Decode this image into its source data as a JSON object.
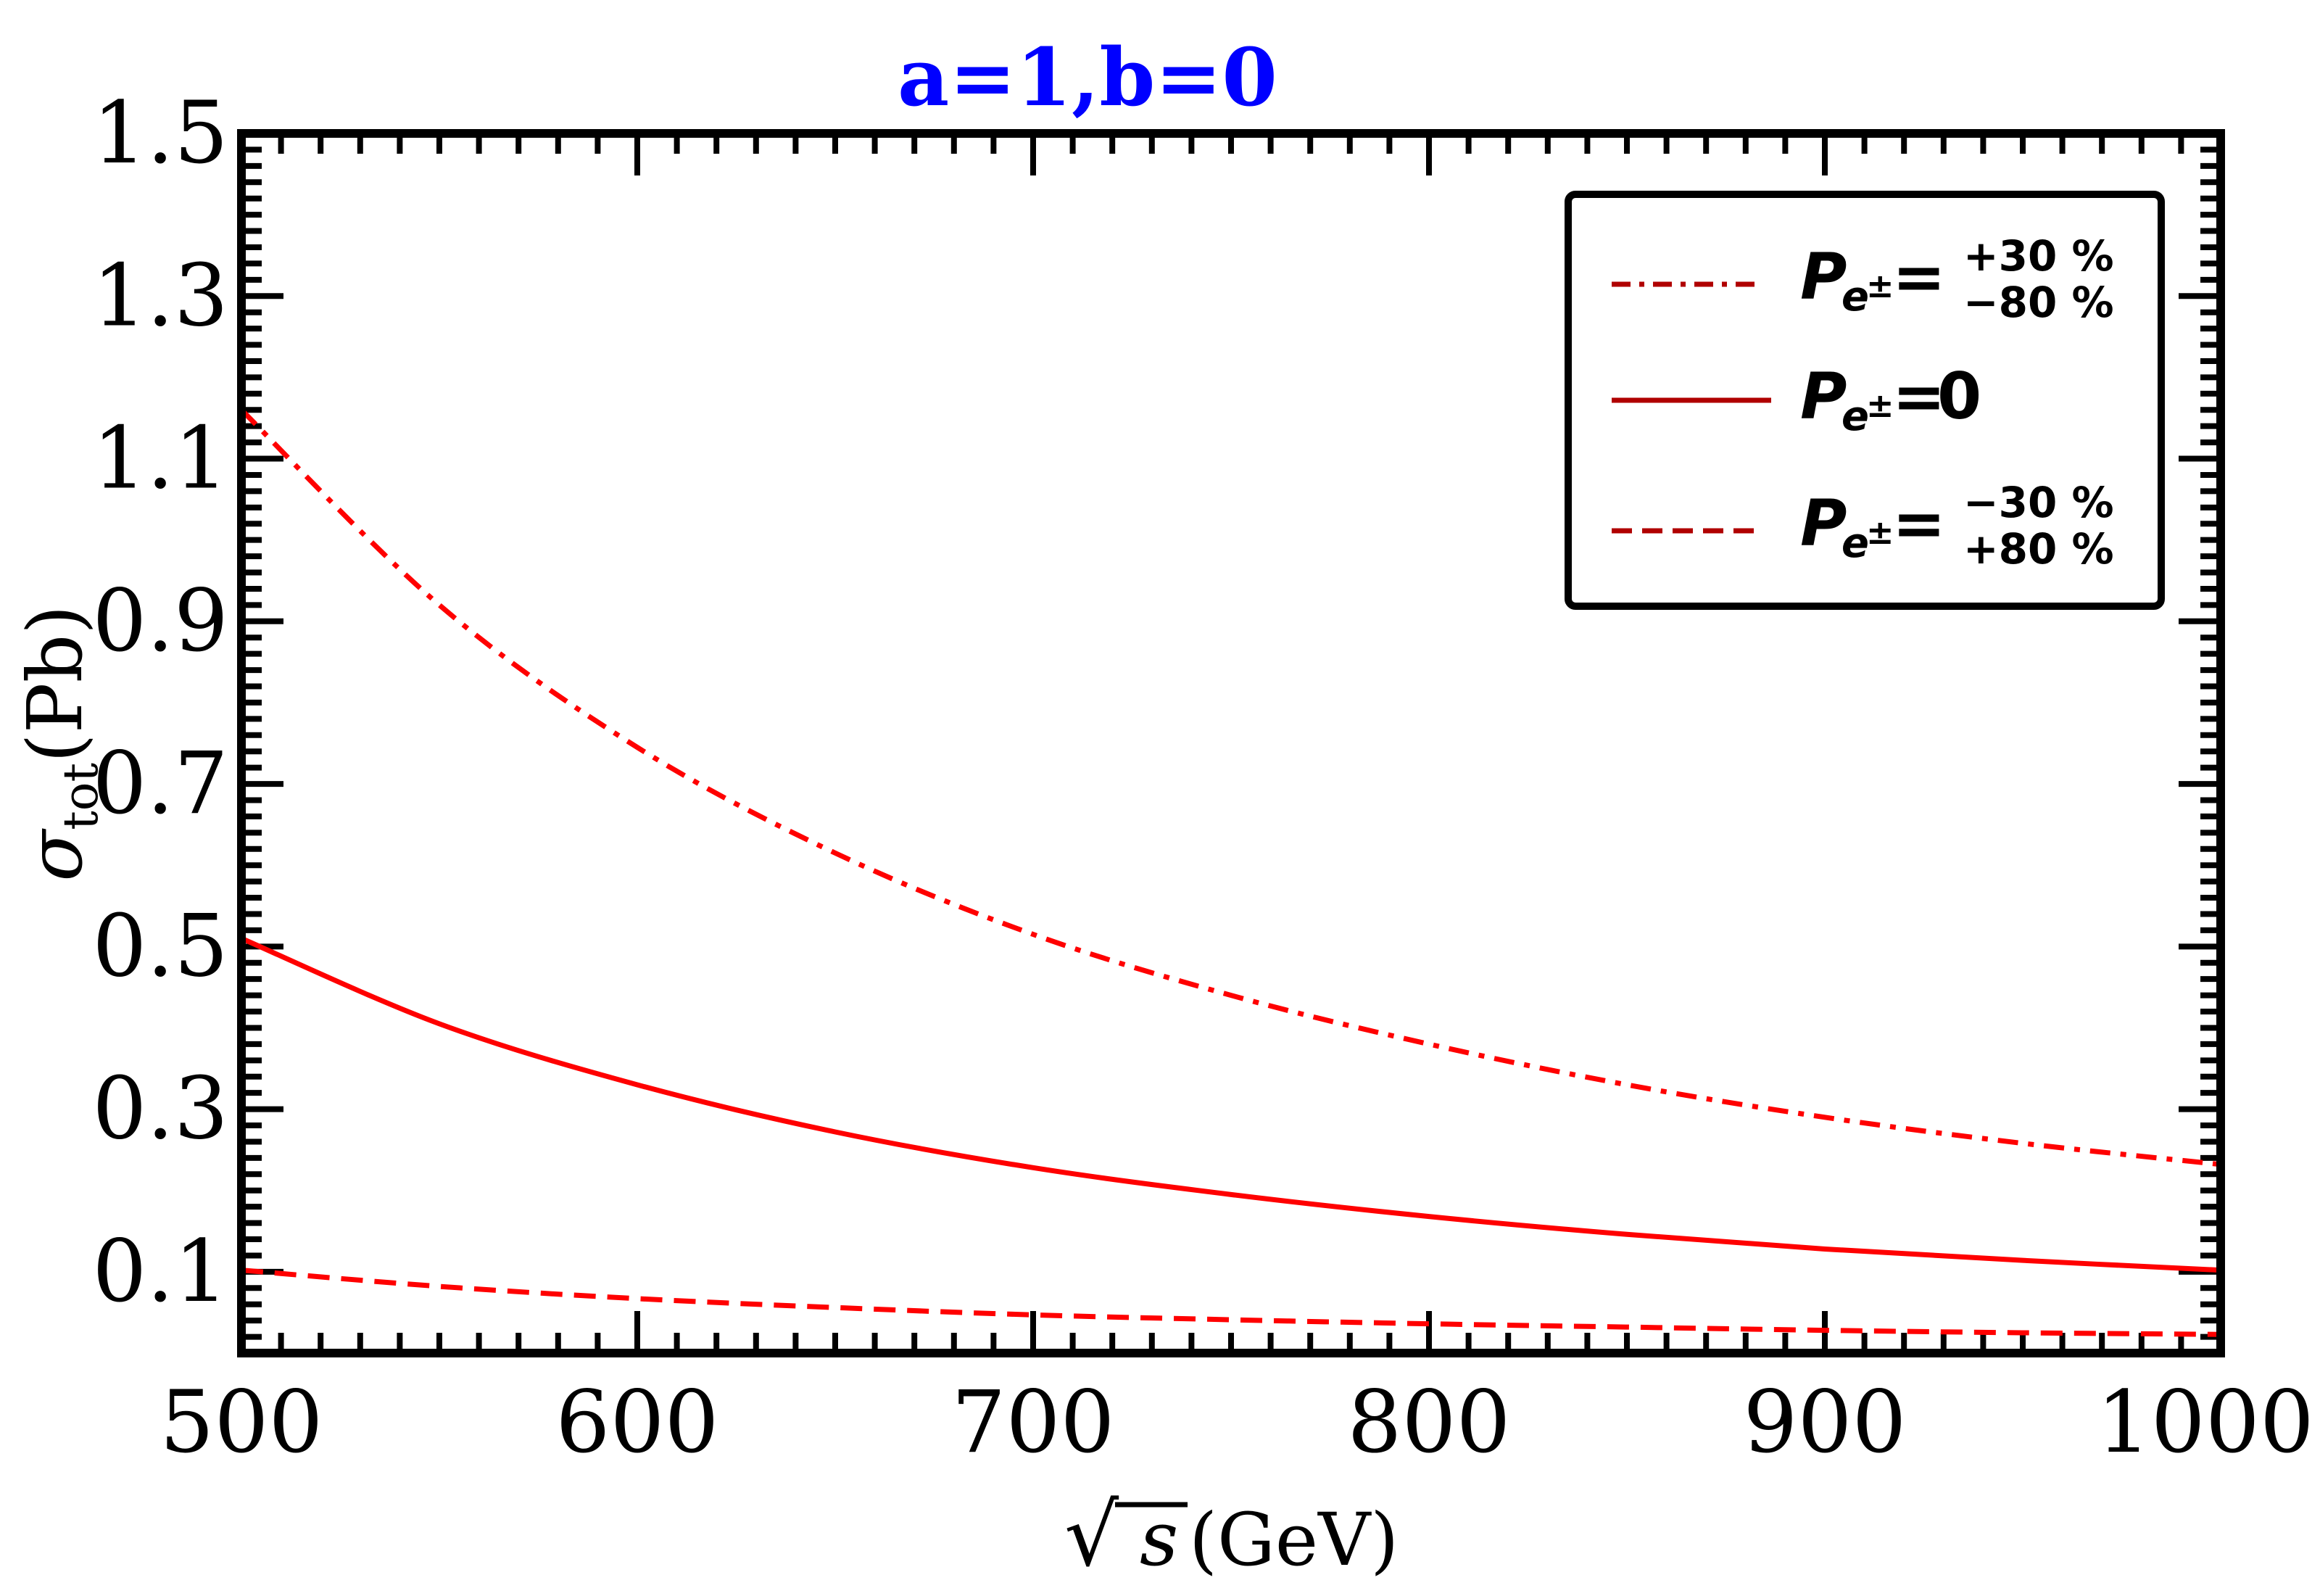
{
  "chart_data": {
    "type": "line",
    "title": "a=1,b=0",
    "title_color": "#0000ff",
    "xlabel": "√s(GeV)",
    "xlabel_parts": {
      "sqrt": "√",
      "var": "s",
      "unit": "(GeV)"
    },
    "ylabel": "σtot(Pb)",
    "ylabel_parts": {
      "sym": "σ",
      "sub": "tot",
      "unit": "(Pb)"
    },
    "xlim": [
      500,
      1000
    ],
    "ylim": [
      0.0,
      1.5
    ],
    "xticks": [
      500,
      600,
      700,
      800,
      900,
      1000
    ],
    "xtick_labels": [
      "500",
      "600",
      "700",
      "800",
      "900",
      "1000"
    ],
    "yticks": [
      0.1,
      0.3,
      0.5,
      0.7,
      0.9,
      1.1,
      1.3,
      1.5
    ],
    "ytick_labels": [
      "0.1",
      "0.3",
      "0.5",
      "0.7",
      "0.9",
      "1.1",
      "1.3",
      "1.5"
    ],
    "x": [
      500,
      550,
      600,
      650,
      700,
      750,
      800,
      850,
      900,
      950,
      1000
    ],
    "series": [
      {
        "name": "P_e± = +30% / −80%",
        "style": "dashdot",
        "color": "#ff0000",
        "legend_color": "#b00000",
        "values": [
          1.16,
          0.92,
          0.745,
          0.615,
          0.515,
          0.44,
          0.38,
          0.33,
          0.29,
          0.258,
          0.232
        ]
      },
      {
        "name": "P_e± = 0",
        "style": "solid",
        "color": "#ff0000",
        "legend_color": "#b00000",
        "values": [
          0.51,
          0.405,
          0.33,
          0.272,
          0.228,
          0.195,
          0.168,
          0.146,
          0.128,
          0.114,
          0.102
        ]
      },
      {
        "name": "P_e± = −30% / +80%",
        "style": "dashed",
        "color": "#ff0000",
        "legend_color": "#b00000",
        "values": [
          0.102,
          0.082,
          0.067,
          0.056,
          0.047,
          0.041,
          0.036,
          0.032,
          0.028,
          0.025,
          0.023
        ]
      }
    ],
    "legend": {
      "location": "top-right",
      "entries": [
        {
          "main": "P",
          "sub": "e",
          "subsup": "±",
          "eq": "=",
          "sup": "+30 %",
          "low": "−80 %"
        },
        {
          "main": "P",
          "sub": "e",
          "subsup": "±",
          "eq": "=",
          "value": "0"
        },
        {
          "main": "P",
          "sub": "e",
          "subsup": "±",
          "eq": "=",
          "sup": "−30 %",
          "low": "+80 %"
        }
      ]
    },
    "grid": false
  }
}
